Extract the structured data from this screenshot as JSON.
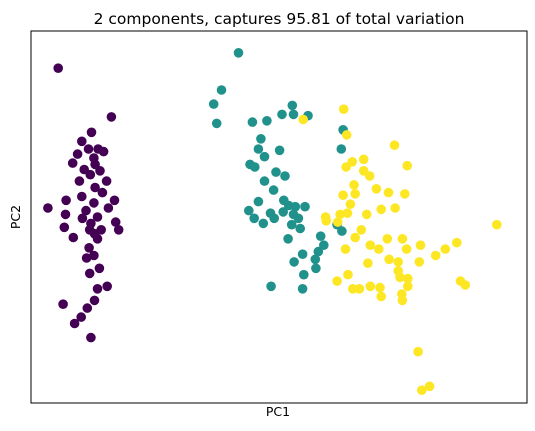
{
  "chart_data": {
    "type": "scatter",
    "title": "2 components, captures 95.81 of total variation",
    "xlabel": "PC1",
    "ylabel": "PC2",
    "xlim": [
      -3.9,
      4.3
    ],
    "ylim": [
      -1.4,
      1.5
    ],
    "x_ticks": [],
    "y_ticks": [],
    "grid": false,
    "legend": "none",
    "series": [
      {
        "color": "#440154",
        "points": [
          [
            -3.45,
            1.21
          ],
          [
            -2.57,
            0.83
          ],
          [
            -2.9,
            0.71
          ],
          [
            -3.06,
            0.64
          ],
          [
            -2.79,
            0.58
          ],
          [
            -3.13,
            0.54
          ],
          [
            -2.95,
            0.58
          ],
          [
            -2.7,
            0.56
          ],
          [
            -2.86,
            0.51
          ],
          [
            -3.21,
            0.47
          ],
          [
            -2.84,
            0.46
          ],
          [
            -3.02,
            0.42
          ],
          [
            -2.76,
            0.41
          ],
          [
            -2.92,
            0.38
          ],
          [
            -2.65,
            0.33
          ],
          [
            -3.1,
            0.33
          ],
          [
            -2.84,
            0.28
          ],
          [
            -2.72,
            0.24
          ],
          [
            -3.06,
            0.21
          ],
          [
            -2.86,
            0.16
          ],
          [
            -2.62,
            0.12
          ],
          [
            -2.99,
            0.1
          ],
          [
            -3.32,
            0.18
          ],
          [
            -2.52,
            0.18
          ],
          [
            -3.62,
            0.12
          ],
          [
            -3.33,
            0.07
          ],
          [
            -3.05,
            0.04
          ],
          [
            -2.8,
            0.05
          ],
          [
            -2.91,
            0.0
          ],
          [
            -2.5,
            0.01
          ],
          [
            -2.74,
            -0.05
          ],
          [
            -2.93,
            -0.05
          ],
          [
            -2.45,
            -0.05
          ],
          [
            -2.85,
            -0.08
          ],
          [
            -3.35,
            -0.03
          ],
          [
            -3.2,
            -0.11
          ],
          [
            -2.8,
            -0.12
          ],
          [
            -2.94,
            -0.19
          ],
          [
            -2.86,
            -0.25
          ],
          [
            -2.98,
            -0.27
          ],
          [
            -2.77,
            -0.35
          ],
          [
            -2.93,
            -0.39
          ],
          [
            -2.64,
            -0.49
          ],
          [
            -2.8,
            -0.51
          ],
          [
            -2.85,
            -0.6
          ],
          [
            -2.97,
            -0.66
          ],
          [
            -3.37,
            -0.63
          ],
          [
            -3.07,
            -0.73
          ],
          [
            -2.91,
            -0.89
          ],
          [
            -3.18,
            -0.78
          ]
        ]
      },
      {
        "color": "#21918c",
        "points": [
          [
            -0.47,
            1.33
          ],
          [
            -0.75,
            1.04
          ],
          [
            -0.88,
            0.93
          ],
          [
            -0.83,
            0.78
          ],
          [
            -0.24,
            0.79
          ],
          [
            0.0,
            0.8
          ],
          [
            0.25,
            0.85
          ],
          [
            0.42,
            0.92
          ],
          [
            0.44,
            0.85
          ],
          [
            0.68,
            0.84
          ],
          [
            1.26,
            0.73
          ],
          [
            -0.1,
            0.66
          ],
          [
            -0.14,
            0.58
          ],
          [
            -0.04,
            0.52
          ],
          [
            0.21,
            0.57
          ],
          [
            -0.28,
            0.46
          ],
          [
            -0.2,
            0.44
          ],
          [
            1.23,
            0.58
          ],
          [
            0.15,
            0.4
          ],
          [
            0.3,
            0.37
          ],
          [
            -0.04,
            0.33
          ],
          [
            0.11,
            0.26
          ],
          [
            0.28,
            0.18
          ],
          [
            -0.14,
            0.17
          ],
          [
            0.36,
            0.14
          ],
          [
            0.47,
            0.13
          ],
          [
            0.63,
            0.13
          ],
          [
            -0.3,
            0.1
          ],
          [
            0.06,
            0.08
          ],
          [
            0.27,
            0.09
          ],
          [
            0.12,
            0.04
          ],
          [
            -0.21,
            0.04
          ],
          [
            0.44,
            0.07
          ],
          [
            0.52,
            0.04
          ],
          [
            -0.06,
            0.0
          ],
          [
            0.41,
            -0.01
          ],
          [
            0.55,
            -0.04
          ],
          [
            1.16,
            -0.01
          ],
          [
            0.89,
            -0.1
          ],
          [
            0.35,
            -0.12
          ],
          [
            0.94,
            -0.17
          ],
          [
            1.24,
            -0.06
          ],
          [
            0.85,
            -0.22
          ],
          [
            0.59,
            -0.24
          ],
          [
            0.8,
            -0.28
          ],
          [
            0.45,
            -0.3
          ],
          [
            0.81,
            -0.35
          ],
          [
            0.61,
            -0.4
          ],
          [
            0.59,
            -0.51
          ],
          [
            0.07,
            -0.49
          ]
        ]
      },
      {
        "color": "#fde725",
        "points": [
          [
            0.6,
            0.81
          ],
          [
            1.27,
            0.89
          ],
          [
            1.32,
            0.69
          ],
          [
            2.11,
            0.61
          ],
          [
            1.6,
            0.5
          ],
          [
            1.41,
            0.48
          ],
          [
            1.6,
            0.41
          ],
          [
            2.32,
            0.45
          ],
          [
            1.31,
            0.44
          ],
          [
            1.7,
            0.37
          ],
          [
            1.44,
            0.3
          ],
          [
            1.81,
            0.27
          ],
          [
            1.46,
            0.23
          ],
          [
            2.01,
            0.24
          ],
          [
            1.26,
            0.22
          ],
          [
            2.28,
            0.23
          ],
          [
            1.38,
            0.15
          ],
          [
            1.89,
            0.11
          ],
          [
            2.12,
            0.12
          ],
          [
            0.97,
            0.05
          ],
          [
            1.21,
            0.07
          ],
          [
            1.33,
            0.08
          ],
          [
            0.98,
            0.02
          ],
          [
            1.17,
            0.01
          ],
          [
            1.65,
            0.07
          ],
          [
            1.56,
            -0.05
          ],
          [
            3.8,
            -0.01
          ],
          [
            1.46,
            -0.11
          ],
          [
            1.99,
            -0.12
          ],
          [
            2.24,
            -0.12
          ],
          [
            1.71,
            -0.17
          ],
          [
            1.3,
            -0.2
          ],
          [
            2.54,
            -0.17
          ],
          [
            3.14,
            -0.15
          ],
          [
            2.31,
            -0.2
          ],
          [
            1.85,
            -0.2
          ],
          [
            2.95,
            -0.2
          ],
          [
            2.79,
            -0.25
          ],
          [
            2.02,
            -0.28
          ],
          [
            2.52,
            -0.3
          ],
          [
            2.17,
            -0.3
          ],
          [
            1.67,
            -0.31
          ],
          [
            2.17,
            -0.37
          ],
          [
            1.34,
            -0.4
          ],
          [
            1.16,
            -0.45
          ],
          [
            3.2,
            -0.45
          ],
          [
            3.28,
            -0.48
          ],
          [
            1.42,
            -0.51
          ],
          [
            1.53,
            -0.51
          ],
          [
            1.71,
            -0.49
          ],
          [
            1.87,
            -0.5
          ],
          [
            2.2,
            -0.42
          ],
          [
            2.33,
            -0.43
          ],
          [
            1.89,
            -0.57
          ],
          [
            2.33,
            -0.49
          ],
          [
            2.23,
            -0.55
          ],
          [
            2.5,
            -1.0
          ],
          [
            2.56,
            -1.3
          ],
          [
            2.69,
            -1.27
          ],
          [
            2.24,
            -0.6
          ]
        ]
      }
    ]
  }
}
